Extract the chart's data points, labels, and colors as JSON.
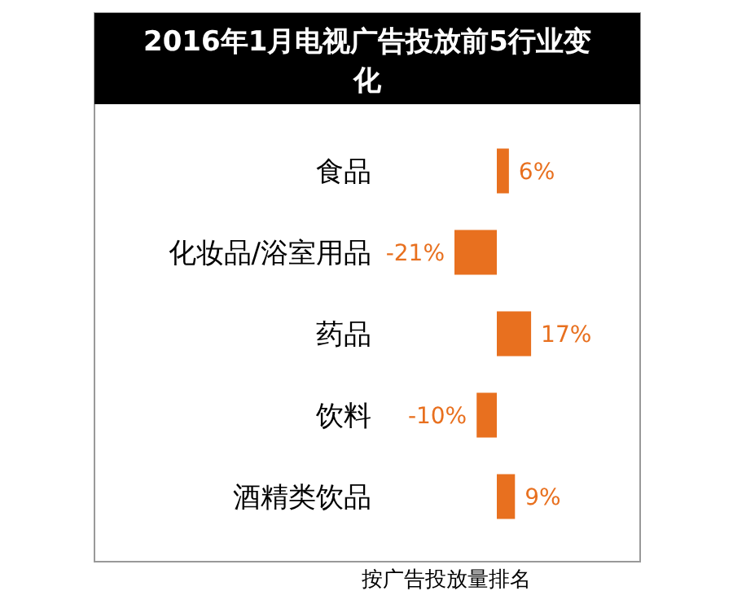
{
  "chart_data": {
    "type": "bar",
    "orientation": "horizontal",
    "title": "2016年1月电视广告投放前5行业变化",
    "categories": [
      "食品",
      "化妆品/浴室用品",
      "药品",
      "饮料",
      "酒精类饮品"
    ],
    "values": [
      6,
      -21,
      17,
      -10,
      9
    ],
    "value_labels": [
      "6%",
      "-21%",
      "17%",
      "-10%",
      "9%"
    ],
    "color": "#e8701f",
    "annotations": [
      "按广告投放量排名"
    ]
  }
}
